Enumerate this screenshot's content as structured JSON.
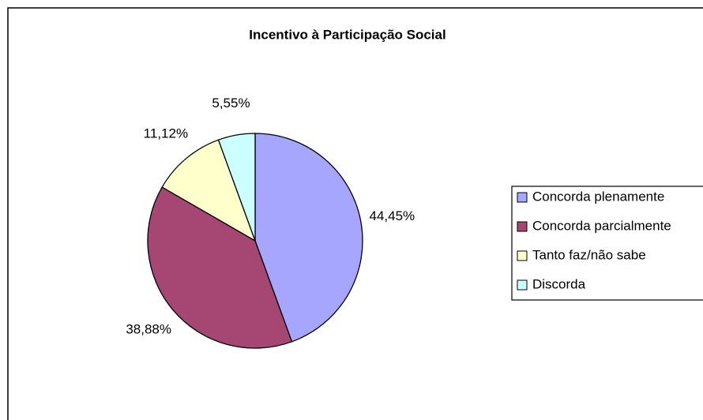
{
  "chart_data": {
    "type": "pie",
    "title": "Incentivo à Participação Social",
    "categories": [
      "Concorda plenamente",
      "Concorda parcialmente",
      "Tanto faz/não sabe",
      "Discorda"
    ],
    "values": [
      44.45,
      38.88,
      11.12,
      5.55
    ],
    "value_labels": [
      "44,45%",
      "38,88%",
      "11,12%",
      "5,55%"
    ],
    "colors": [
      "#a6a6ff",
      "#a64673",
      "#ffffcc",
      "#ccffff"
    ],
    "legend": "right"
  }
}
